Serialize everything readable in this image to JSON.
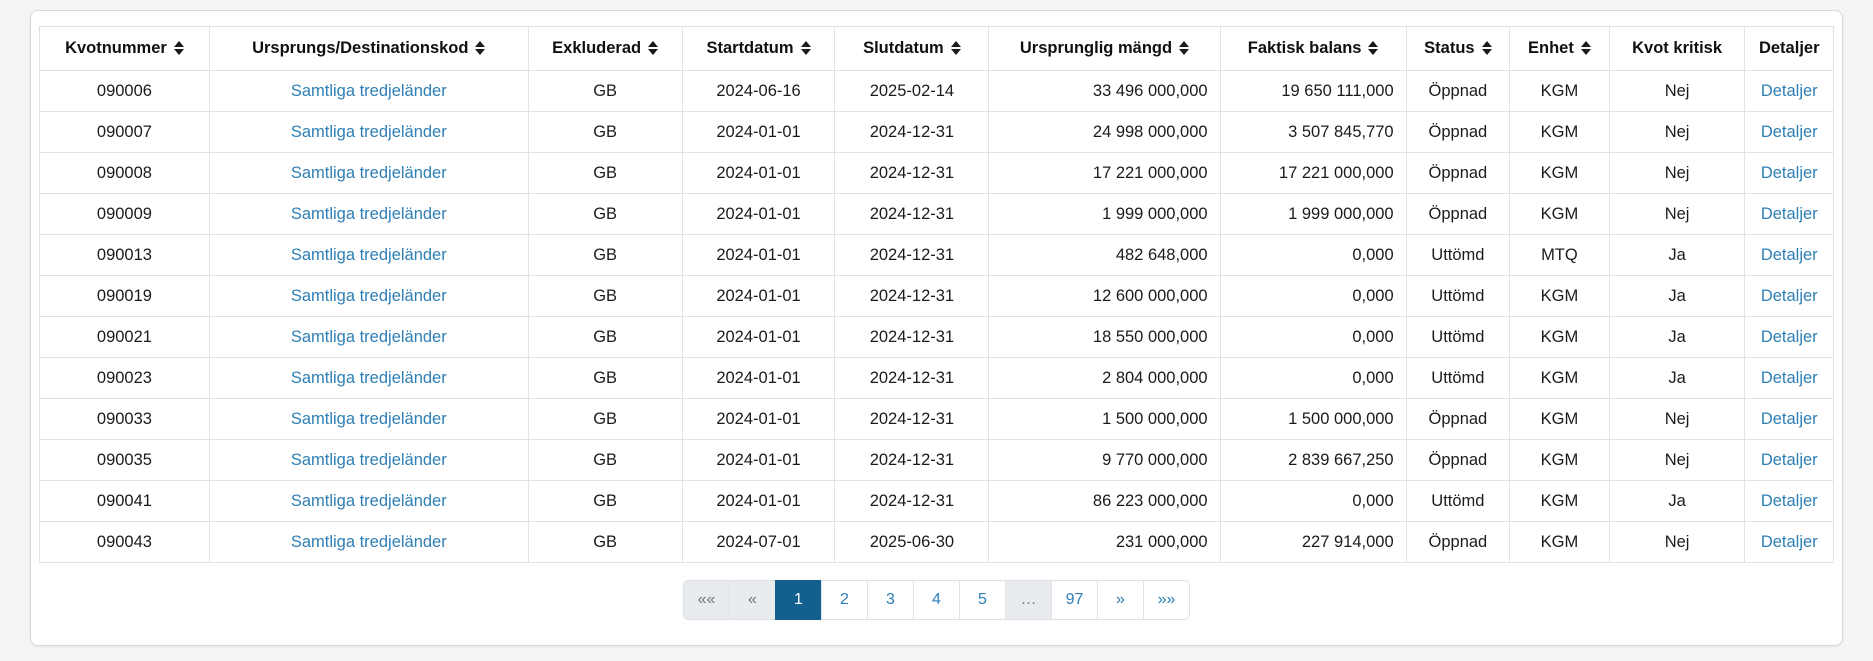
{
  "colors": {
    "link": "#2d7fb5",
    "active_page_bg": "#135f8f",
    "disabled_bg": "#e9ecef",
    "page_bg": "#f4f4f5",
    "table_border": "#e2e2e2"
  },
  "table": {
    "columns": [
      {
        "key": "kvotnummer",
        "label": "Kvotnummer",
        "sortable": true,
        "align": "center",
        "link": false,
        "width": "9.47%"
      },
      {
        "key": "kod",
        "label": "Ursprungs/Destinationskod",
        "sortable": true,
        "align": "center",
        "link": true,
        "width": "17.77%"
      },
      {
        "key": "exkluderad",
        "label": "Exkluderad",
        "sortable": true,
        "align": "center",
        "link": false,
        "width": "8.58%"
      },
      {
        "key": "startdatum",
        "label": "Startdatum",
        "sortable": true,
        "align": "center",
        "link": false,
        "width": "8.52%"
      },
      {
        "key": "slutdatum",
        "label": "Slutdatum",
        "sortable": true,
        "align": "center",
        "link": false,
        "width": "8.58%"
      },
      {
        "key": "mangd",
        "label": "Ursprunglig mängd",
        "sortable": true,
        "align": "right",
        "link": false,
        "width": "12.89%"
      },
      {
        "key": "balans",
        "label": "Faktisk balans",
        "sortable": true,
        "align": "right",
        "link": false,
        "width": "10.37%"
      },
      {
        "key": "status",
        "label": "Status",
        "sortable": true,
        "align": "center",
        "link": false,
        "width": "5.77%"
      },
      {
        "key": "enhet",
        "label": "Enhet",
        "sortable": true,
        "align": "center",
        "link": false,
        "width": "5.55%"
      },
      {
        "key": "kritisk",
        "label": "Kvot kritisk",
        "sortable": false,
        "align": "center",
        "link": false,
        "width": "7.57%"
      },
      {
        "key": "detaljer",
        "label": "Detaljer",
        "sortable": false,
        "align": "center",
        "link": true,
        "width": "4.93%"
      }
    ],
    "rows": [
      {
        "kvotnummer": "090006",
        "kod": "Samtliga tredjeländer",
        "exkluderad": "GB",
        "startdatum": "2024-06-16",
        "slutdatum": "2025-02-14",
        "mangd": "33 496 000,000",
        "balans": "19 650 111,000",
        "status": "Öppnad",
        "enhet": "KGM",
        "kritisk": "Nej",
        "detaljer": "Detaljer"
      },
      {
        "kvotnummer": "090007",
        "kod": "Samtliga tredjeländer",
        "exkluderad": "GB",
        "startdatum": "2024-01-01",
        "slutdatum": "2024-12-31",
        "mangd": "24 998 000,000",
        "balans": "3 507 845,770",
        "status": "Öppnad",
        "enhet": "KGM",
        "kritisk": "Nej",
        "detaljer": "Detaljer"
      },
      {
        "kvotnummer": "090008",
        "kod": "Samtliga tredjeländer",
        "exkluderad": "GB",
        "startdatum": "2024-01-01",
        "slutdatum": "2024-12-31",
        "mangd": "17 221 000,000",
        "balans": "17 221 000,000",
        "status": "Öppnad",
        "enhet": "KGM",
        "kritisk": "Nej",
        "detaljer": "Detaljer"
      },
      {
        "kvotnummer": "090009",
        "kod": "Samtliga tredjeländer",
        "exkluderad": "GB",
        "startdatum": "2024-01-01",
        "slutdatum": "2024-12-31",
        "mangd": "1 999 000,000",
        "balans": "1 999 000,000",
        "status": "Öppnad",
        "enhet": "KGM",
        "kritisk": "Nej",
        "detaljer": "Detaljer"
      },
      {
        "kvotnummer": "090013",
        "kod": "Samtliga tredjeländer",
        "exkluderad": "GB",
        "startdatum": "2024-01-01",
        "slutdatum": "2024-12-31",
        "mangd": "482 648,000",
        "balans": "0,000",
        "status": "Uttömd",
        "enhet": "MTQ",
        "kritisk": "Ja",
        "detaljer": "Detaljer"
      },
      {
        "kvotnummer": "090019",
        "kod": "Samtliga tredjeländer",
        "exkluderad": "GB",
        "startdatum": "2024-01-01",
        "slutdatum": "2024-12-31",
        "mangd": "12 600 000,000",
        "balans": "0,000",
        "status": "Uttömd",
        "enhet": "KGM",
        "kritisk": "Ja",
        "detaljer": "Detaljer"
      },
      {
        "kvotnummer": "090021",
        "kod": "Samtliga tredjeländer",
        "exkluderad": "GB",
        "startdatum": "2024-01-01",
        "slutdatum": "2024-12-31",
        "mangd": "18 550 000,000",
        "balans": "0,000",
        "status": "Uttömd",
        "enhet": "KGM",
        "kritisk": "Ja",
        "detaljer": "Detaljer"
      },
      {
        "kvotnummer": "090023",
        "kod": "Samtliga tredjeländer",
        "exkluderad": "GB",
        "startdatum": "2024-01-01",
        "slutdatum": "2024-12-31",
        "mangd": "2 804 000,000",
        "balans": "0,000",
        "status": "Uttömd",
        "enhet": "KGM",
        "kritisk": "Ja",
        "detaljer": "Detaljer"
      },
      {
        "kvotnummer": "090033",
        "kod": "Samtliga tredjeländer",
        "exkluderad": "GB",
        "startdatum": "2024-01-01",
        "slutdatum": "2024-12-31",
        "mangd": "1 500 000,000",
        "balans": "1 500 000,000",
        "status": "Öppnad",
        "enhet": "KGM",
        "kritisk": "Nej",
        "detaljer": "Detaljer"
      },
      {
        "kvotnummer": "090035",
        "kod": "Samtliga tredjeländer",
        "exkluderad": "GB",
        "startdatum": "2024-01-01",
        "slutdatum": "2024-12-31",
        "mangd": "9 770 000,000",
        "balans": "2 839 667,250",
        "status": "Öppnad",
        "enhet": "KGM",
        "kritisk": "Nej",
        "detaljer": "Detaljer"
      },
      {
        "kvotnummer": "090041",
        "kod": "Samtliga tredjeländer",
        "exkluderad": "GB",
        "startdatum": "2024-01-01",
        "slutdatum": "2024-12-31",
        "mangd": "86 223 000,000",
        "balans": "0,000",
        "status": "Uttömd",
        "enhet": "KGM",
        "kritisk": "Ja",
        "detaljer": "Detaljer"
      },
      {
        "kvotnummer": "090043",
        "kod": "Samtliga tredjeländer",
        "exkluderad": "GB",
        "startdatum": "2024-07-01",
        "slutdatum": "2025-06-30",
        "mangd": "231 000,000",
        "balans": "227 914,000",
        "status": "Öppnad",
        "enhet": "KGM",
        "kritisk": "Nej",
        "detaljer": "Detaljer"
      }
    ]
  },
  "pagination": {
    "items": [
      {
        "label": "««",
        "name": "first-page",
        "type": "disabled"
      },
      {
        "label": "«",
        "name": "previous-page",
        "type": "disabled"
      },
      {
        "label": "1",
        "name": "page-1",
        "type": "active"
      },
      {
        "label": "2",
        "name": "page-2",
        "type": "page"
      },
      {
        "label": "3",
        "name": "page-3",
        "type": "page"
      },
      {
        "label": "4",
        "name": "page-4",
        "type": "page"
      },
      {
        "label": "5",
        "name": "page-5",
        "type": "page"
      },
      {
        "label": "…",
        "name": "ellipsis",
        "type": "disabled"
      },
      {
        "label": "97",
        "name": "page-97",
        "type": "page"
      },
      {
        "label": "»",
        "name": "next-page",
        "type": "page"
      },
      {
        "label": "»»",
        "name": "last-page",
        "type": "page"
      }
    ]
  }
}
